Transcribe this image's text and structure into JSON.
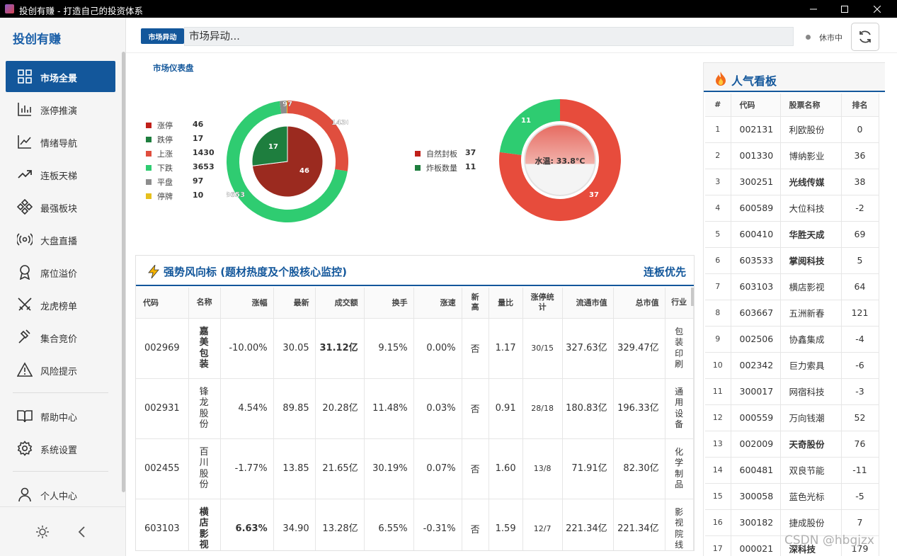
{
  "window": {
    "title": "投创有赚 - 打造自己的投资体系"
  },
  "sidebar": {
    "brand": "投创有赚",
    "items": [
      {
        "label": "市场全景",
        "icon": "grid-icon",
        "active": true
      },
      {
        "label": "涨停推演",
        "icon": "bar-chart-icon"
      },
      {
        "label": "情绪导航",
        "icon": "line-chart-icon"
      },
      {
        "label": "连板天梯",
        "icon": "trend-up-icon"
      },
      {
        "label": "最强板块",
        "icon": "diamond-grid-icon"
      },
      {
        "label": "大盘直播",
        "icon": "broadcast-icon"
      },
      {
        "label": "席位溢价",
        "icon": "badge-icon"
      },
      {
        "label": "龙虎榜单",
        "icon": "crossed-swords-icon"
      },
      {
        "label": "集合竞价",
        "icon": "hammer-icon"
      },
      {
        "label": "风险提示",
        "icon": "warning-icon"
      },
      {
        "label": "帮助中心",
        "icon": "book-icon"
      },
      {
        "label": "系统设置",
        "icon": "gear-icon"
      },
      {
        "label": "个人中心",
        "icon": "user-icon"
      }
    ]
  },
  "topbar": {
    "tag": "市场异动",
    "ticker": "市场异动...",
    "status": "休市中"
  },
  "dashboard": {
    "title": "市场仪表盘",
    "legend1": [
      {
        "label": "涨停",
        "value": "46",
        "color": "#c0201a"
      },
      {
        "label": "跌停",
        "value": "17",
        "color": "#1e7e3e"
      },
      {
        "label": "上涨",
        "value": "1430",
        "color": "#e04e3e"
      },
      {
        "label": "下跌",
        "value": "3653",
        "color": "#2fcc71"
      },
      {
        "label": "平盘",
        "value": "97",
        "color": "#8d8d8d"
      },
      {
        "label": "停牌",
        "value": "10",
        "color": "#e6c01e"
      }
    ],
    "legend2": [
      {
        "label": "自然封板",
        "value": "37",
        "color": "#c0201a"
      },
      {
        "label": "炸板数量",
        "value": "11",
        "color": "#1e7e3e"
      }
    ],
    "temp_label": "水温: 33.8°C"
  },
  "chart_data": [
    {
      "type": "pie",
      "variant": "nested-donut",
      "outer": [
        {
          "label": "上涨",
          "value": 1430
        },
        {
          "label": "下跌",
          "value": 3653
        },
        {
          "label": "平盘",
          "value": 97
        },
        {
          "label": "停牌",
          "value": 10
        }
      ],
      "inner": [
        {
          "label": "涨停",
          "value": 46
        },
        {
          "label": "跌停",
          "value": 17
        }
      ]
    },
    {
      "type": "pie",
      "variant": "donut",
      "slices": [
        {
          "label": "自然封板",
          "value": 37
        },
        {
          "label": "炸板数量",
          "value": 11
        }
      ],
      "center_label": "水温: 33.8°C",
      "center_value": 33.8
    }
  ],
  "strong": {
    "title": "强势风向标 (题材热度及个股核心监控)",
    "right_label": "连板优先",
    "headers": [
      "代码",
      "名称",
      "涨幅",
      "最新",
      "成交额",
      "换手",
      "涨速",
      "新高",
      "量比",
      "涨停统计",
      "流通市值",
      "总市值",
      "行业"
    ],
    "rows": [
      {
        "code": "002969",
        "name": "嘉美包装",
        "pct": "-10.00%",
        "price": "30.05",
        "amount": "31.12亿",
        "turnover": "9.15%",
        "speed": "0.00%",
        "high": "否",
        "vr": "1.17",
        "stat": "30/15",
        "float": "327.63亿",
        "total": "329.47亿",
        "industry": "包装印刷",
        "bold_name": true,
        "bold_amt": true
      },
      {
        "code": "002931",
        "name": "锋龙股份",
        "pct": "4.54%",
        "price": "89.85",
        "amount": "20.28亿",
        "turnover": "11.48%",
        "speed": "0.03%",
        "high": "否",
        "vr": "0.91",
        "stat": "28/18",
        "float": "180.83亿",
        "total": "196.33亿",
        "industry": "通用设备"
      },
      {
        "code": "002455",
        "name": "百川股份",
        "pct": "-1.77%",
        "price": "13.85",
        "amount": "21.65亿",
        "turnover": "30.19%",
        "speed": "0.07%",
        "high": "否",
        "vr": "1.60",
        "stat": "13/8",
        "float": "71.91亿",
        "total": "82.30亿",
        "industry": "化学制品"
      },
      {
        "code": "603103",
        "name": "横店影视",
        "pct": "6.63%",
        "price": "34.90",
        "amount": "13.28亿",
        "turnover": "6.55%",
        "speed": "-0.31%",
        "high": "否",
        "vr": "1.59",
        "stat": "12/7",
        "float": "221.34亿",
        "total": "221.34亿",
        "industry": "影视院线",
        "bold_name": true,
        "bold_pct": true
      }
    ]
  },
  "hot": {
    "title": "人气看板",
    "headers": [
      "#",
      "代码",
      "股票名称",
      "排名"
    ],
    "rows": [
      {
        "no": "1",
        "code": "002131",
        "name": "利欧股份",
        "rank": "0"
      },
      {
        "no": "2",
        "code": "001330",
        "name": "博纳影业",
        "rank": "36"
      },
      {
        "no": "3",
        "code": "300251",
        "name": "光线传媒",
        "rank": "38",
        "bold": true
      },
      {
        "no": "4",
        "code": "600589",
        "name": "大位科技",
        "rank": "-2"
      },
      {
        "no": "5",
        "code": "600410",
        "name": "华胜天成",
        "rank": "69",
        "bold": true
      },
      {
        "no": "6",
        "code": "603533",
        "name": "掌阅科技",
        "rank": "5",
        "bold": true
      },
      {
        "no": "7",
        "code": "603103",
        "name": "横店影视",
        "rank": "64"
      },
      {
        "no": "8",
        "code": "603667",
        "name": "五洲新春",
        "rank": "121"
      },
      {
        "no": "9",
        "code": "002506",
        "name": "协鑫集成",
        "rank": "-4"
      },
      {
        "no": "10",
        "code": "002342",
        "name": "巨力索具",
        "rank": "-6"
      },
      {
        "no": "11",
        "code": "300017",
        "name": "网宿科技",
        "rank": "-3"
      },
      {
        "no": "12",
        "code": "000559",
        "name": "万向钱潮",
        "rank": "52"
      },
      {
        "no": "13",
        "code": "002009",
        "name": "天奇股份",
        "rank": "76",
        "bold": true
      },
      {
        "no": "14",
        "code": "600481",
        "name": "双良节能",
        "rank": "-11"
      },
      {
        "no": "15",
        "code": "300058",
        "name": "蓝色光标",
        "rank": "-5"
      },
      {
        "no": "16",
        "code": "300182",
        "name": "捷成股份",
        "rank": "7"
      },
      {
        "no": "17",
        "code": "000021",
        "name": "深科技",
        "rank": "179",
        "bold": true
      }
    ]
  },
  "watermark": "CSDN @hbgjzx"
}
